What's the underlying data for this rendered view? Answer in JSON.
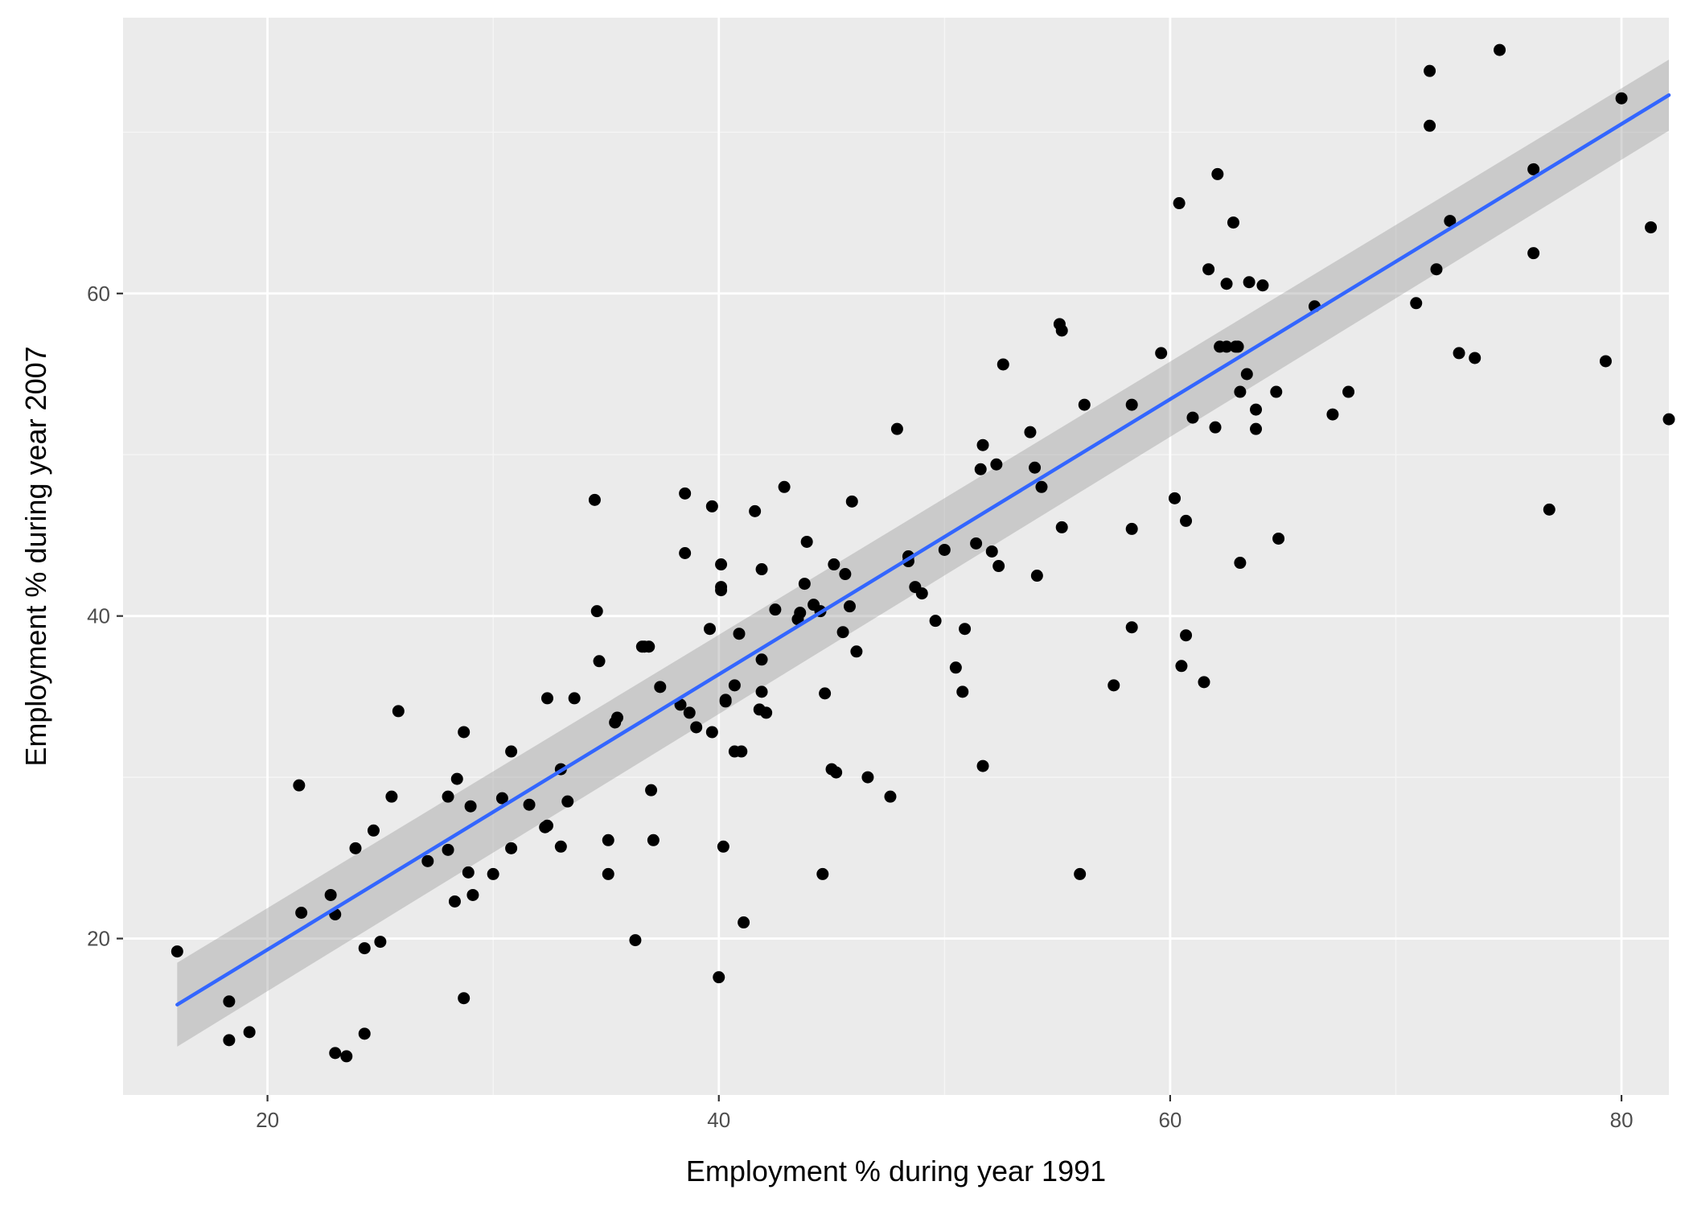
{
  "chart_data": {
    "type": "scatter",
    "title": "",
    "xlabel": "Employment % during year 1991",
    "ylabel": "Employment % during year 2007",
    "xlim": [
      13.6,
      82.1
    ],
    "ylim": [
      10.3,
      77.1
    ],
    "x_ticks": [
      20,
      40,
      60,
      80
    ],
    "y_ticks": [
      20,
      40,
      60
    ],
    "x_tick_labels": [
      "20",
      "40",
      "60",
      "80"
    ],
    "y_tick_labels": [
      "20",
      "40",
      "60"
    ],
    "x_minor_ticks": [
      30,
      50,
      70
    ],
    "y_minor_ticks": [
      30,
      50,
      70
    ],
    "grid": true,
    "legend": "none",
    "colors": {
      "panel_background": "#ebebeb",
      "grid_major": "#ffffff",
      "grid_minor": "#f5f5f5",
      "points": "#000000",
      "fit_line": "#3366ff",
      "confidence_band": "#999999"
    },
    "series": [
      {
        "type": "scatter",
        "points": [
          [
            16.0,
            19.2
          ],
          [
            18.3,
            16.1
          ],
          [
            18.3,
            13.7
          ],
          [
            19.2,
            14.2
          ],
          [
            21.4,
            29.5
          ],
          [
            21.5,
            21.6
          ],
          [
            22.8,
            22.7
          ],
          [
            23.0,
            12.9
          ],
          [
            23.0,
            21.5
          ],
          [
            23.5,
            12.7
          ],
          [
            23.9,
            25.6
          ],
          [
            24.3,
            14.1
          ],
          [
            24.3,
            19.4
          ],
          [
            24.7,
            26.7
          ],
          [
            25.0,
            19.8
          ],
          [
            25.5,
            28.8
          ],
          [
            25.8,
            34.1
          ],
          [
            27.1,
            24.8
          ],
          [
            28.0,
            25.5
          ],
          [
            28.0,
            28.8
          ],
          [
            28.3,
            22.3
          ],
          [
            28.4,
            29.9
          ],
          [
            28.7,
            32.8
          ],
          [
            28.7,
            16.3
          ],
          [
            28.9,
            24.1
          ],
          [
            29.0,
            28.2
          ],
          [
            29.1,
            22.7
          ],
          [
            30.0,
            24.0
          ],
          [
            30.4,
            28.7
          ],
          [
            30.8,
            31.6
          ],
          [
            30.8,
            25.6
          ],
          [
            31.6,
            28.3
          ],
          [
            32.3,
            26.9
          ],
          [
            32.4,
            34.9
          ],
          [
            32.4,
            27.0
          ],
          [
            33.0,
            30.5
          ],
          [
            33.0,
            25.7
          ],
          [
            33.3,
            28.5
          ],
          [
            33.6,
            34.9
          ],
          [
            34.5,
            47.2
          ],
          [
            34.6,
            40.3
          ],
          [
            34.7,
            37.2
          ],
          [
            35.1,
            26.1
          ],
          [
            35.1,
            24.0
          ],
          [
            35.4,
            33.4
          ],
          [
            35.5,
            33.7
          ],
          [
            36.3,
            19.9
          ],
          [
            36.6,
            38.1
          ],
          [
            36.7,
            38.1
          ],
          [
            36.9,
            38.1
          ],
          [
            37.0,
            29.2
          ],
          [
            37.1,
            26.1
          ],
          [
            37.4,
            35.6
          ],
          [
            38.3,
            34.5
          ],
          [
            38.5,
            47.6
          ],
          [
            38.5,
            43.9
          ],
          [
            38.7,
            34.0
          ],
          [
            39.0,
            33.1
          ],
          [
            39.6,
            39.2
          ],
          [
            39.7,
            46.8
          ],
          [
            39.7,
            32.8
          ],
          [
            40.0,
            17.6
          ],
          [
            40.1,
            41.8
          ],
          [
            40.1,
            41.6
          ],
          [
            40.1,
            43.2
          ],
          [
            40.2,
            25.7
          ],
          [
            40.3,
            34.8
          ],
          [
            40.3,
            34.7
          ],
          [
            40.7,
            35.7
          ],
          [
            40.7,
            31.6
          ],
          [
            40.9,
            38.9
          ],
          [
            41.0,
            31.6
          ],
          [
            41.1,
            21.0
          ],
          [
            41.6,
            46.5
          ],
          [
            41.8,
            34.2
          ],
          [
            41.9,
            35.3
          ],
          [
            41.9,
            37.3
          ],
          [
            41.9,
            42.9
          ],
          [
            42.1,
            34.0
          ],
          [
            42.5,
            40.4
          ],
          [
            42.9,
            48.0
          ],
          [
            43.5,
            39.8
          ],
          [
            43.6,
            40.2
          ],
          [
            43.8,
            42.0
          ],
          [
            43.9,
            44.6
          ],
          [
            44.2,
            40.7
          ],
          [
            44.5,
            40.3
          ],
          [
            44.6,
            24.0
          ],
          [
            44.7,
            35.2
          ],
          [
            45.0,
            30.5
          ],
          [
            45.1,
            43.2
          ],
          [
            45.2,
            30.3
          ],
          [
            45.5,
            39.0
          ],
          [
            45.6,
            42.6
          ],
          [
            45.8,
            40.6
          ],
          [
            45.9,
            47.1
          ],
          [
            46.1,
            37.8
          ],
          [
            46.6,
            30.0
          ],
          [
            47.6,
            28.8
          ],
          [
            47.9,
            51.6
          ],
          [
            48.4,
            43.7
          ],
          [
            48.4,
            43.4
          ],
          [
            48.7,
            41.8
          ],
          [
            49.0,
            41.4
          ],
          [
            49.6,
            39.7
          ],
          [
            50.0,
            44.1
          ],
          [
            50.5,
            36.8
          ],
          [
            50.8,
            35.3
          ],
          [
            50.9,
            39.2
          ],
          [
            51.4,
            44.5
          ],
          [
            51.6,
            49.1
          ],
          [
            51.7,
            50.6
          ],
          [
            51.7,
            30.7
          ],
          [
            52.1,
            44.0
          ],
          [
            52.3,
            49.4
          ],
          [
            52.4,
            43.1
          ],
          [
            52.6,
            55.6
          ],
          [
            53.8,
            51.4
          ],
          [
            54.0,
            49.2
          ],
          [
            54.1,
            42.5
          ],
          [
            54.3,
            48.0
          ],
          [
            55.1,
            58.1
          ],
          [
            55.2,
            57.7
          ],
          [
            55.2,
            45.5
          ],
          [
            56.0,
            24.0
          ],
          [
            56.2,
            53.1
          ],
          [
            57.5,
            35.7
          ],
          [
            58.3,
            53.1
          ],
          [
            58.3,
            45.4
          ],
          [
            58.3,
            39.3
          ],
          [
            59.6,
            56.3
          ],
          [
            60.2,
            47.3
          ],
          [
            60.4,
            65.6
          ],
          [
            60.5,
            36.9
          ],
          [
            60.7,
            45.9
          ],
          [
            60.7,
            38.8
          ],
          [
            61.0,
            52.3
          ],
          [
            61.5,
            35.9
          ],
          [
            61.7,
            61.5
          ],
          [
            62.0,
            51.7
          ],
          [
            62.1,
            67.4
          ],
          [
            62.2,
            56.7
          ],
          [
            62.5,
            56.7
          ],
          [
            62.5,
            60.6
          ],
          [
            62.8,
            64.4
          ],
          [
            62.9,
            56.7
          ],
          [
            63.0,
            56.7
          ],
          [
            63.1,
            53.9
          ],
          [
            63.1,
            43.3
          ],
          [
            63.4,
            55.0
          ],
          [
            63.5,
            60.7
          ],
          [
            63.8,
            51.6
          ],
          [
            63.8,
            52.8
          ],
          [
            64.1,
            60.5
          ],
          [
            64.7,
            53.9
          ],
          [
            64.8,
            44.8
          ],
          [
            66.4,
            59.2
          ],
          [
            67.2,
            52.5
          ],
          [
            67.9,
            53.9
          ],
          [
            70.9,
            59.4
          ],
          [
            71.5,
            73.8
          ],
          [
            71.5,
            70.4
          ],
          [
            71.8,
            61.5
          ],
          [
            72.4,
            64.5
          ],
          [
            72.8,
            56.3
          ],
          [
            73.5,
            56.0
          ],
          [
            74.6,
            75.1
          ],
          [
            76.1,
            67.7
          ],
          [
            76.1,
            62.5
          ],
          [
            76.8,
            46.6
          ],
          [
            79.3,
            55.8
          ],
          [
            80.0,
            72.1
          ],
          [
            81.3,
            64.1
          ],
          [
            82.1,
            52.2
          ]
        ]
      }
    ],
    "fit": {
      "type": "linear",
      "x_range": [
        16.0,
        82.1
      ],
      "y_at_x_min": 15.9,
      "y_at_x_max": 72.3,
      "confidence_band_lower": [
        13.3,
        70.1
      ],
      "confidence_band_upper": [
        18.5,
        74.5
      ]
    }
  }
}
